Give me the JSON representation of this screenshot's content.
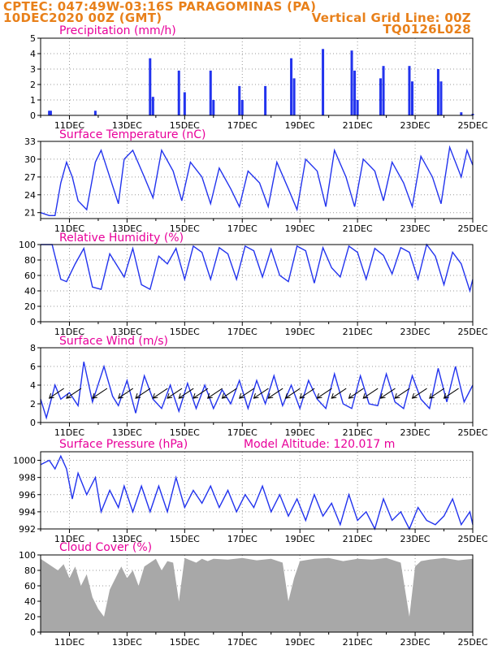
{
  "header": {
    "line1_left": "CPTEC:   047:49W-03:16S   PARAGOMINAS (PA)",
    "line2_left": "10DEC2020 00Z (GMT)",
    "line2_right": "Vertical Grid Line: 00Z",
    "line3_right": "TQ0126L028"
  },
  "colors": {
    "header": "#e8801a",
    "title": "#e8009a",
    "line": "#2233ee",
    "cloud": "#a8a8a8",
    "grid": "#999999"
  },
  "x_ticks": [
    "11DEC",
    "13DEC",
    "15DEC",
    "17DEC",
    "19DEC",
    "21DEC",
    "23DEC",
    "25DEC"
  ],
  "chart_data": [
    {
      "type": "bar",
      "title": "Precipitation (mm/h)",
      "x_range": [
        "10DEC 00Z",
        "25DEC 00Z"
      ],
      "ylim": [
        0,
        5
      ],
      "yticks": [
        "0",
        "1",
        "2",
        "3",
        "4",
        "5"
      ],
      "x_day": [
        0.3,
        0.35,
        1.9,
        3.8,
        3.9,
        4.8,
        5.0,
        5.9,
        6.0,
        6.9,
        7.0,
        7.8,
        8.7,
        8.8,
        9.8,
        10.8,
        10.9,
        11.0,
        11.8,
        11.9,
        12.8,
        12.9,
        13.8,
        13.9,
        14.6,
        15.0
      ],
      "values": [
        0.3,
        0.3,
        0.3,
        3.7,
        1.2,
        2.9,
        1.5,
        2.9,
        1.0,
        1.9,
        1.0,
        1.9,
        3.7,
        2.4,
        4.3,
        4.2,
        2.9,
        1.0,
        2.4,
        3.2,
        3.2,
        2.2,
        3.0,
        2.2,
        0.2,
        0.1
      ]
    },
    {
      "type": "line",
      "title": "Surface Temperature (nC)",
      "ylim": [
        20,
        33
      ],
      "yticks": [
        "21",
        "24",
        "27",
        "30",
        "33"
      ],
      "x_day": [
        0,
        0.3,
        0.5,
        0.7,
        0.9,
        1.1,
        1.3,
        1.6,
        1.9,
        2.1,
        2.4,
        2.7,
        2.9,
        3.2,
        3.6,
        3.9,
        4.2,
        4.6,
        4.9,
        5.2,
        5.6,
        5.9,
        6.2,
        6.6,
        6.9,
        7.2,
        7.6,
        7.9,
        8.2,
        8.6,
        8.9,
        9.2,
        9.6,
        9.9,
        10.2,
        10.6,
        10.9,
        11.2,
        11.6,
        11.9,
        12.2,
        12.6,
        12.9,
        13.2,
        13.6,
        13.9,
        14.2,
        14.6,
        14.8,
        15.0
      ],
      "values": [
        21,
        20.5,
        20.5,
        26,
        29.5,
        27,
        23,
        21.5,
        29.5,
        31.5,
        27,
        22.5,
        30,
        31.5,
        27,
        23.5,
        31.5,
        28,
        23,
        29.5,
        27,
        22.5,
        28.5,
        25,
        22,
        28,
        26,
        22,
        29.5,
        25,
        21.5,
        30,
        28,
        22,
        31.5,
        27,
        22,
        30,
        28,
        23,
        29.5,
        26,
        22,
        30.5,
        27,
        22.5,
        32,
        27,
        31.5,
        29
      ]
    },
    {
      "type": "line",
      "title": "Relative Humidity (%)",
      "ylim": [
        0,
        100
      ],
      "yticks": [
        "0",
        "20",
        "40",
        "60",
        "80",
        "100"
      ],
      "x_day": [
        0,
        0.4,
        0.7,
        0.9,
        1.2,
        1.5,
        1.8,
        2.1,
        2.4,
        2.7,
        2.9,
        3.2,
        3.5,
        3.8,
        4.1,
        4.4,
        4.7,
        5.0,
        5.3,
        5.6,
        5.9,
        6.2,
        6.5,
        6.8,
        7.1,
        7.4,
        7.7,
        8.0,
        8.3,
        8.6,
        8.9,
        9.2,
        9.5,
        9.8,
        10.1,
        10.4,
        10.7,
        11.0,
        11.3,
        11.6,
        11.9,
        12.2,
        12.5,
        12.8,
        13.1,
        13.4,
        13.7,
        14.0,
        14.3,
        14.6,
        14.9,
        15.0
      ],
      "values": [
        100,
        100,
        55,
        52,
        75,
        95,
        45,
        42,
        88,
        70,
        58,
        95,
        48,
        42,
        85,
        75,
        95,
        55,
        98,
        90,
        55,
        96,
        88,
        55,
        98,
        92,
        58,
        94,
        60,
        52,
        98,
        92,
        50,
        96,
        70,
        58,
        98,
        90,
        55,
        95,
        86,
        62,
        96,
        90,
        55,
        100,
        85,
        48,
        90,
        75,
        40,
        55
      ]
    },
    {
      "type": "line",
      "title": "Surface Wind (m/s)",
      "ylim": [
        0,
        8
      ],
      "yticks": [
        "0",
        "2",
        "4",
        "6",
        "8"
      ],
      "x_day": [
        0,
        0.2,
        0.5,
        0.7,
        1.0,
        1.3,
        1.5,
        1.8,
        2.2,
        2.5,
        2.7,
        3.0,
        3.3,
        3.6,
        3.9,
        4.2,
        4.5,
        4.8,
        5.1,
        5.4,
        5.7,
        6.0,
        6.3,
        6.6,
        6.9,
        7.2,
        7.5,
        7.8,
        8.1,
        8.4,
        8.7,
        9.0,
        9.3,
        9.6,
        9.9,
        10.2,
        10.5,
        10.8,
        11.1,
        11.4,
        11.7,
        12.0,
        12.3,
        12.6,
        12.9,
        13.2,
        13.5,
        13.8,
        14.1,
        14.4,
        14.7,
        15.0
      ],
      "values": [
        2.5,
        0.5,
        4.0,
        2.5,
        3.2,
        1.8,
        6.5,
        2.2,
        6.0,
        2.8,
        1.8,
        4.5,
        1.0,
        5.0,
        2.5,
        1.5,
        4.0,
        1.2,
        4.2,
        1.5,
        4.0,
        1.5,
        3.5,
        2.0,
        4.5,
        1.5,
        4.5,
        2.0,
        5.0,
        1.8,
        4.0,
        1.5,
        4.5,
        2.5,
        1.5,
        5.2,
        2.0,
        1.5,
        5.0,
        2.0,
        1.8,
        5.2,
        2.2,
        1.5,
        5.0,
        2.5,
        1.5,
        5.8,
        2.2,
        6.0,
        2.2,
        4.0
      ]
    },
    {
      "type": "line",
      "title": "Surface Pressure (hPa)",
      "annotation": "Model Altitude: 120.017 m",
      "ylim": [
        992,
        1001
      ],
      "yticks": [
        "992",
        "994",
        "996",
        "998",
        "1000"
      ],
      "x_day": [
        0,
        0.3,
        0.5,
        0.7,
        0.9,
        1.1,
        1.3,
        1.6,
        1.9,
        2.1,
        2.4,
        2.7,
        2.9,
        3.2,
        3.5,
        3.8,
        4.1,
        4.4,
        4.7,
        5.0,
        5.3,
        5.6,
        5.9,
        6.2,
        6.5,
        6.8,
        7.1,
        7.4,
        7.7,
        8.0,
        8.3,
        8.6,
        8.9,
        9.2,
        9.5,
        9.8,
        10.1,
        10.4,
        10.7,
        11.0,
        11.3,
        11.6,
        11.9,
        12.2,
        12.5,
        12.8,
        13.1,
        13.4,
        13.7,
        14.0,
        14.3,
        14.6,
        14.9,
        15.0
      ],
      "values": [
        999.5,
        1000,
        999,
        1000.5,
        999,
        995.5,
        998.5,
        996,
        998,
        994,
        996.5,
        994.5,
        997,
        994,
        997,
        994,
        997,
        994,
        998,
        994.5,
        996.5,
        995,
        997,
        994.5,
        996.5,
        994,
        996,
        994.5,
        997,
        994,
        996,
        993.5,
        995.5,
        993,
        996,
        993.5,
        995,
        992.5,
        996,
        993,
        994,
        992,
        995.5,
        993,
        994,
        992,
        994.5,
        993,
        992.5,
        993.5,
        995.5,
        992.5,
        994,
        992.5
      ]
    },
    {
      "type": "area",
      "title": "Cloud Cover (%)",
      "ylim": [
        0,
        100
      ],
      "yticks": [
        "0",
        "20",
        "40",
        "60",
        "80",
        "100"
      ],
      "x_day": [
        0,
        0.2,
        0.4,
        0.6,
        0.8,
        1.0,
        1.2,
        1.4,
        1.6,
        1.8,
        2.0,
        2.2,
        2.4,
        2.6,
        2.8,
        3.0,
        3.2,
        3.4,
        3.6,
        3.8,
        4.0,
        4.2,
        4.4,
        4.6,
        4.8,
        5.0,
        5.2,
        5.4,
        5.6,
        5.8,
        6.0,
        6.5,
        7.0,
        7.5,
        8.0,
        8.4,
        8.6,
        8.8,
        9.0,
        9.5,
        10.0,
        10.5,
        11.0,
        11.5,
        12.0,
        12.5,
        12.8,
        13.0,
        13.2,
        13.5,
        14.0,
        14.5,
        15.0
      ],
      "values": [
        95,
        90,
        85,
        80,
        88,
        70,
        85,
        60,
        75,
        45,
        30,
        20,
        55,
        70,
        85,
        70,
        80,
        60,
        85,
        90,
        95,
        80,
        92,
        90,
        40,
        96,
        93,
        90,
        95,
        92,
        95,
        94,
        96,
        93,
        95,
        90,
        40,
        70,
        92,
        95,
        96,
        92,
        95,
        94,
        96,
        90,
        20,
        85,
        92,
        94,
        96,
        93,
        95
      ]
    }
  ]
}
